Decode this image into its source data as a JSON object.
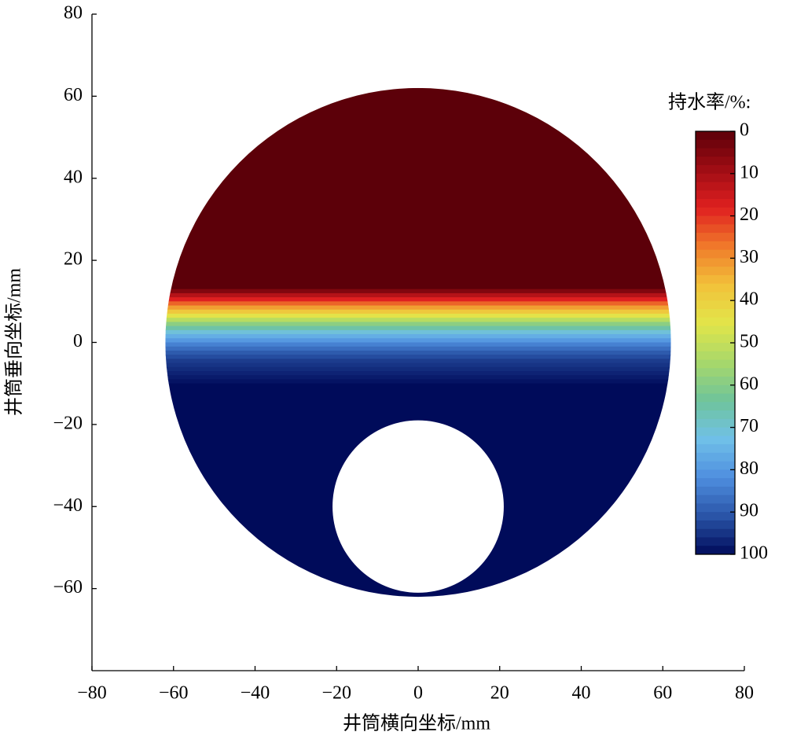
{
  "chart_data": {
    "type": "heatmap",
    "xlabel": "井筒横向坐标/mm",
    "ylabel": "井筒垂向坐标/mm",
    "colorbar_title": "持水率/%:",
    "xlim": [
      -80,
      80
    ],
    "ylim": [
      -80,
      80
    ],
    "xticks": [
      {
        "value": -80,
        "label": "−80"
      },
      {
        "value": -60,
        "label": "−60"
      },
      {
        "value": -40,
        "label": "−40"
      },
      {
        "value": -20,
        "label": "−20"
      },
      0,
      20,
      40,
      60,
      80
    ],
    "yticks": [
      {
        "value": -60,
        "label": "−60"
      },
      {
        "value": -40,
        "label": "−40"
      },
      {
        "value": -20,
        "label": "−20"
      },
      0,
      20,
      40,
      60,
      80
    ],
    "outer_radius": 62,
    "inner_center": [
      0,
      -40
    ],
    "inner_radius": 21,
    "y_bins": [
      62,
      13,
      12,
      11,
      10,
      9,
      8,
      7,
      6,
      5,
      4,
      3,
      2,
      1,
      0,
      -1,
      -2,
      -3,
      -4,
      -5,
      -6,
      -7,
      -8,
      -9,
      -10,
      -62
    ],
    "values": [
      0,
      5,
      12,
      18,
      25,
      32,
      38,
      45,
      52,
      59,
      65,
      71,
      76,
      80,
      84,
      87,
      90,
      92,
      94,
      95,
      96,
      97,
      98,
      99,
      100
    ],
    "clim": [
      0,
      100
    ],
    "cticks": [
      0,
      10,
      20,
      30,
      40,
      50,
      60,
      70,
      80,
      90,
      100
    ],
    "colormap": [
      "#5c0009",
      "#a00d14",
      "#e02020",
      "#f07a2a",
      "#f2c23a",
      "#e2e54a",
      "#a8d86a",
      "#6fc49a",
      "#70c0e8",
      "#4f8fdf",
      "#2a55a8",
      "#000b5a"
    ]
  }
}
